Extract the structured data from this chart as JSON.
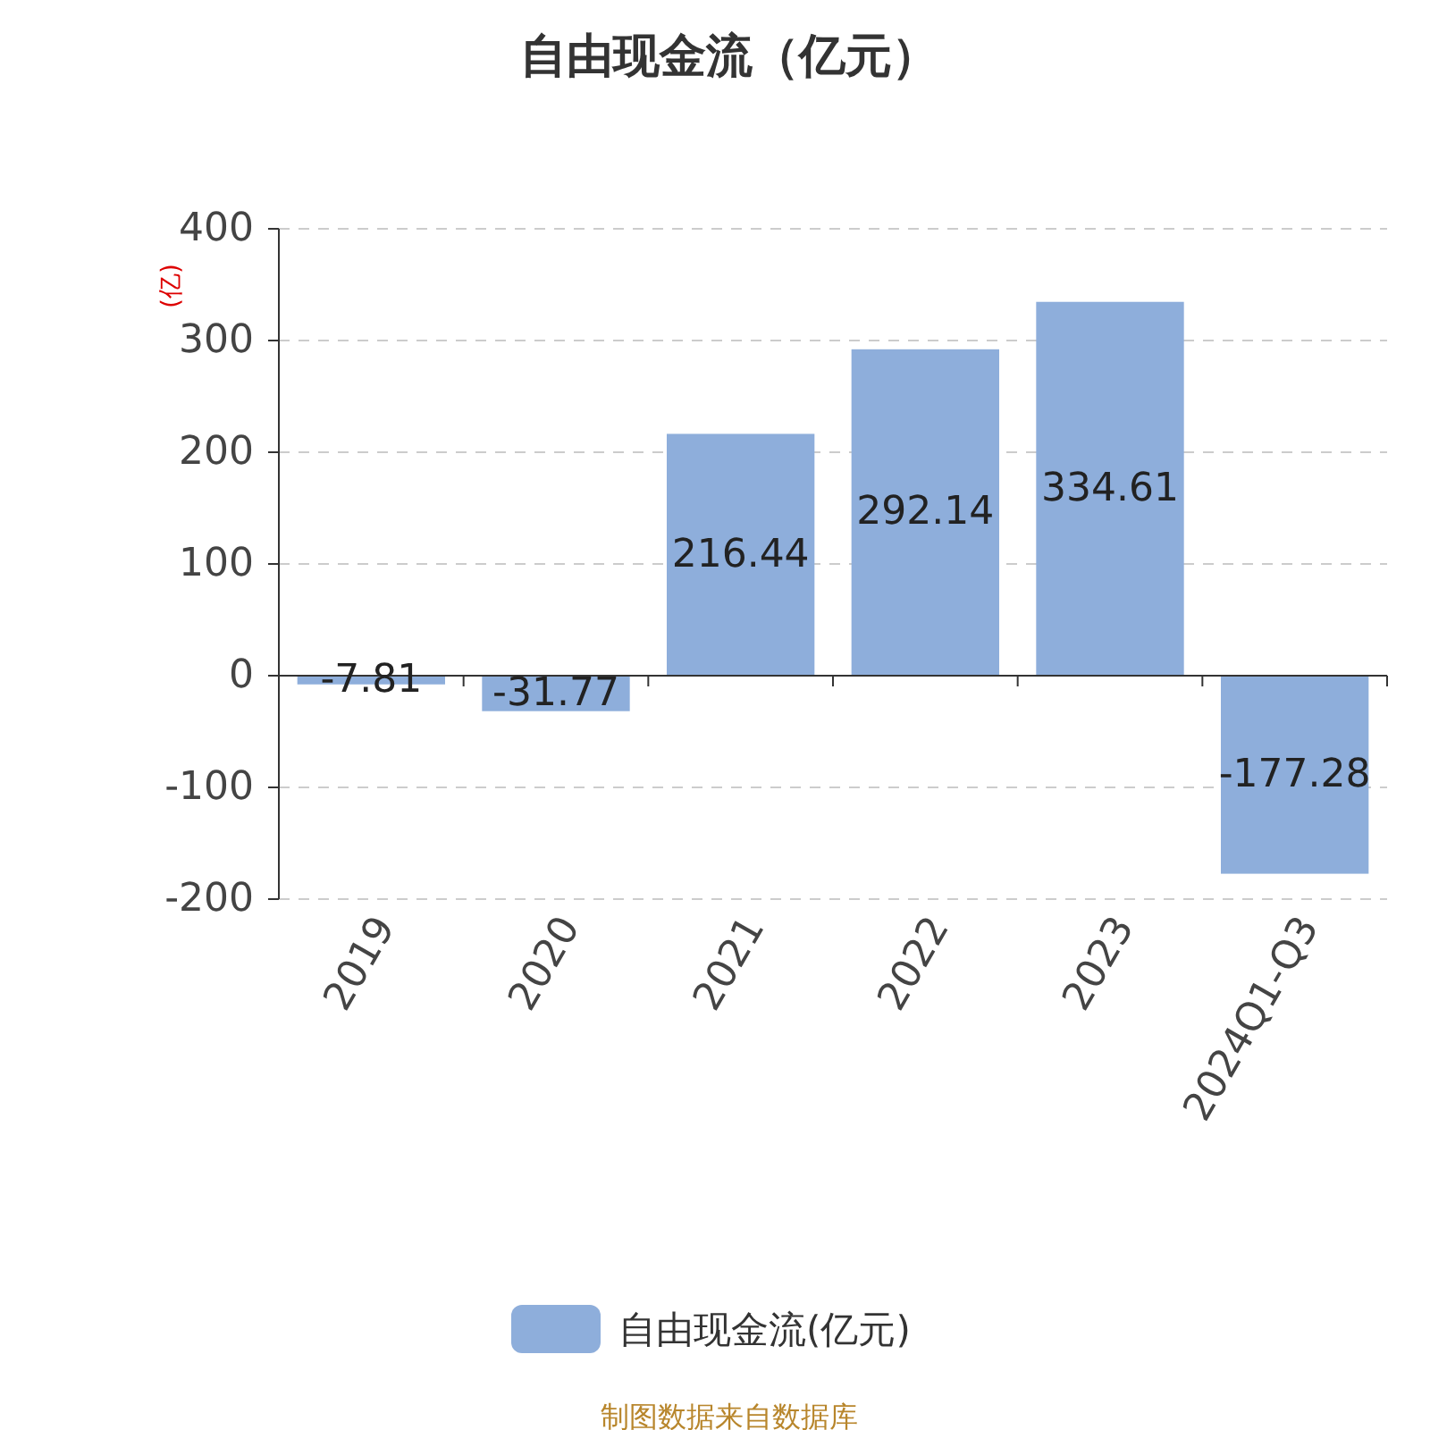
{
  "chart_data": {
    "type": "bar",
    "title": "自由现金流（亿元）",
    "ylabel": "(亿)",
    "categories": [
      "2019",
      "2020",
      "2021",
      "2022",
      "2023",
      "2024Q1-Q3"
    ],
    "series": [
      {
        "name": "自由现金流(亿元)",
        "color": "#8eaedb",
        "values": [
          -7.81,
          -31.77,
          216.44,
          292.14,
          334.61,
          -177.28
        ]
      }
    ],
    "ylim": [
      -200,
      400
    ],
    "yticks": [
      -200,
      -100,
      0,
      100,
      200,
      300,
      400
    ],
    "grid": "y",
    "legend": "bottom",
    "data_labels": true,
    "annotations": [
      "制图数据来自数据库"
    ]
  }
}
